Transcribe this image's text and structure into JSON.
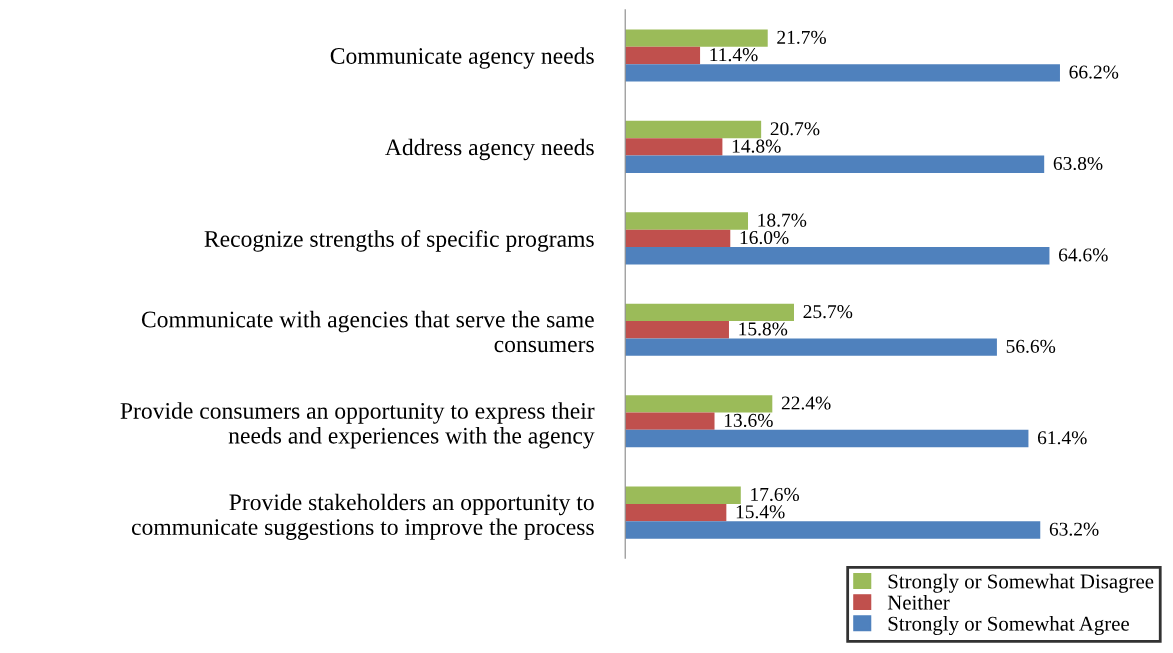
{
  "chart_data": {
    "type": "bar",
    "orientation": "horizontal",
    "tick_labels": "y",
    "legend": "bottom right",
    "grid": false,
    "categories": [
      "Communicate agency needs",
      "Address agency needs",
      "Recognize strengths of specific programs",
      "Communicate with agencies that serve the same\nconsumers",
      "Provide consumers an opportunity to express their\nneeds and experiences with the agency",
      "Provide stakeholders an opportunity to\ncommunicate suggestions to improve the process"
    ],
    "series": [
      {
        "name": "Strongly or Somewhat Disagree",
        "color": "#9bbb59",
        "values": [
          21.7,
          20.7,
          18.7,
          25.7,
          22.4,
          17.6
        ],
        "value_labels": [
          "21.7%",
          "20.7%",
          "18.7%",
          "25.7%",
          "22.4%",
          "17.6%"
        ]
      },
      {
        "name": "Neither",
        "color": "#c0504d",
        "values": [
          11.4,
          14.8,
          16.0,
          15.8,
          13.6,
          15.4
        ],
        "value_labels": [
          "11.4%",
          "14.8%",
          "16.0%",
          "15.8%",
          "13.6%",
          "15.4%"
        ]
      },
      {
        "name": "Strongly or Somewhat Agree",
        "color": "#4f81bd",
        "values": [
          66.2,
          63.8,
          64.6,
          56.6,
          61.4,
          63.2
        ],
        "value_labels": [
          "66.2%",
          "63.8%",
          "64.6%",
          "56.6%",
          "61.4%",
          "63.2%"
        ]
      }
    ]
  }
}
